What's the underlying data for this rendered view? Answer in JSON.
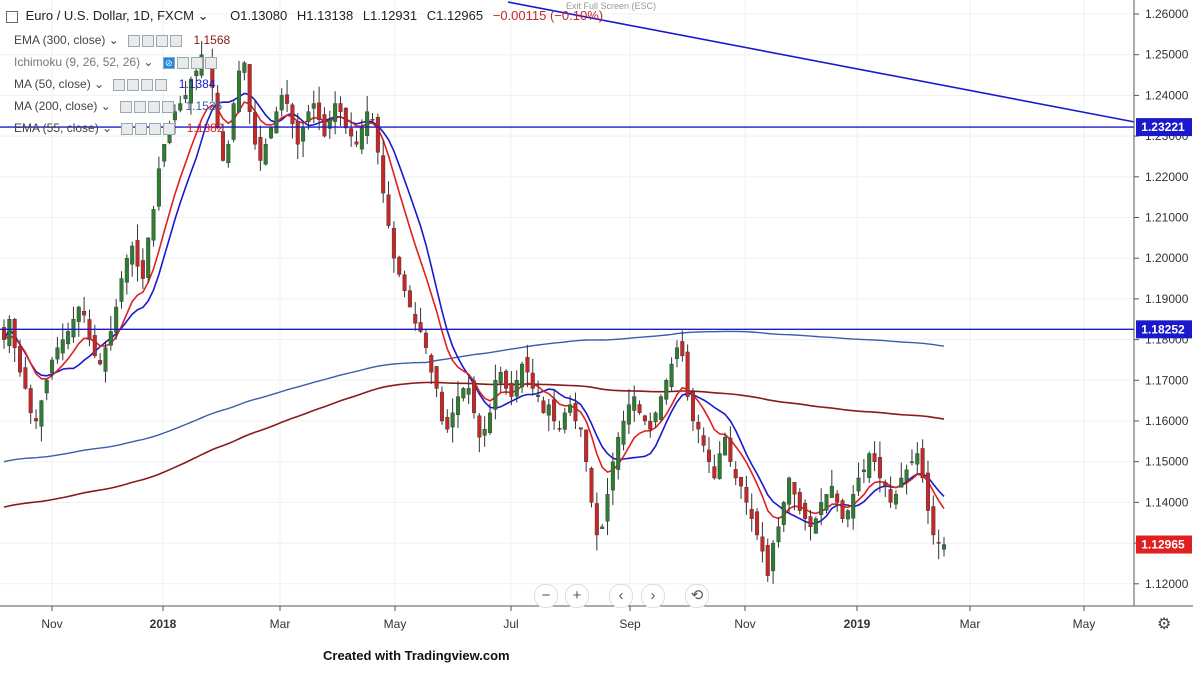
{
  "header": {
    "symbol": "Euro / U.S. Dollar, 1D, FXCM",
    "open": "O1.13080",
    "high": "H1.13138",
    "low": "L1.12931",
    "close": "C1.12965",
    "change": "−0.00115 (−0.10%)"
  },
  "exit_fullscreen": "Exit Full Screen (ESC)",
  "indicators": [
    {
      "label": "EMA (300, close)",
      "value": "1.1568",
      "color": "#8b1a1a"
    },
    {
      "label": "Ichimoku (9, 26, 52, 26)",
      "value": "",
      "color": "#1e88e5"
    },
    {
      "label": "MA (50, close)",
      "value": "1.1384",
      "color": "#1a1acc"
    },
    {
      "label": "MA (200, close)",
      "value": "1.1526",
      "color": "#3a5fa8"
    },
    {
      "label": "EMA (55, close)",
      "value": "1.1382",
      "color": "#e02020"
    }
  ],
  "nav": {
    "zoom_out": "−",
    "zoom_in": "+",
    "prev": "‹",
    "next": "›",
    "reset": "⟲"
  },
  "footer": "Created with Tradingview.com",
  "gear_icon": "⚙",
  "chart_data": {
    "type": "candlestick",
    "x_ticks": [
      "Nov",
      "2018",
      "Mar",
      "May",
      "Jul",
      "Sep",
      "Nov",
      "2019",
      "Mar",
      "May"
    ],
    "y_ticks": [
      "1.26000",
      "1.25000",
      "1.24000",
      "1.23000",
      "1.22000",
      "1.21000",
      "1.20000",
      "1.19000",
      "1.18000",
      "1.17000",
      "1.16000",
      "1.15000",
      "1.14000",
      "1.13000",
      "1.12000"
    ],
    "ylim": [
      1.1145,
      1.2635
    ],
    "horizontal_lines": [
      {
        "value": 1.23221,
        "label": "1.23221",
        "color": "#1a1acc"
      },
      {
        "value": 1.18252,
        "label": "1.18252",
        "color": "#1a1acc"
      }
    ],
    "last_price": {
      "value": 1.12965,
      "label": "1.12965",
      "color": "#e02020"
    },
    "trendline": {
      "from": [
        "2018-05",
        1.263
      ],
      "to": [
        "2019-06",
        1.233
      ],
      "color": "#1a1acc"
    },
    "colors": {
      "up": "#2e7d32",
      "down": "#c62828",
      "ema300": "#8b1a1a",
      "ma200": "#3a5fa8",
      "ma50": "#1a1acc",
      "ema55": "#e02020"
    },
    "close_series": [
      1.18,
      1.185,
      1.178,
      1.172,
      1.168,
      1.162,
      1.16,
      1.165,
      1.17,
      1.175,
      1.178,
      1.18,
      1.182,
      1.185,
      1.188,
      1.186,
      1.18,
      1.176,
      1.174,
      1.178,
      1.182,
      1.188,
      1.195,
      1.2,
      1.203,
      1.198,
      1.195,
      1.205,
      1.212,
      1.222,
      1.228,
      1.232,
      1.236,
      1.238,
      1.24,
      1.244,
      1.246,
      1.25,
      1.248,
      1.242,
      1.232,
      1.224,
      1.228,
      1.238,
      1.246,
      1.248,
      1.236,
      1.228,
      1.224,
      1.228,
      1.232,
      1.236,
      1.24,
      1.238,
      1.233,
      1.228,
      1.232,
      1.236,
      1.238,
      1.234,
      1.23,
      1.234,
      1.238,
      1.236,
      1.232,
      1.23,
      1.228,
      1.232,
      1.236,
      1.234,
      1.226,
      1.216,
      1.208,
      1.2,
      1.196,
      1.192,
      1.188,
      1.184,
      1.182,
      1.178,
      1.172,
      1.168,
      1.16,
      1.158,
      1.162,
      1.166,
      1.168,
      1.168,
      1.162,
      1.156,
      1.158,
      1.162,
      1.17,
      1.172,
      1.168,
      1.166,
      1.17,
      1.174,
      1.172,
      1.168,
      1.166,
      1.162,
      1.164,
      1.16,
      1.158,
      1.162,
      1.164,
      1.16,
      1.158,
      1.15,
      1.14,
      1.132,
      1.134,
      1.142,
      1.15,
      1.156,
      1.16,
      1.164,
      1.166,
      1.162,
      1.16,
      1.158,
      1.162,
      1.166,
      1.17,
      1.174,
      1.178,
      1.176,
      1.166,
      1.16,
      1.158,
      1.154,
      1.15,
      1.146,
      1.152,
      1.156,
      1.15,
      1.146,
      1.144,
      1.14,
      1.136,
      1.132,
      1.128,
      1.122,
      1.13,
      1.134,
      1.14,
      1.146,
      1.142,
      1.138,
      1.136,
      1.134,
      1.136,
      1.14,
      1.142,
      1.144,
      1.14,
      1.136,
      1.138,
      1.142,
      1.146,
      1.148,
      1.152,
      1.15,
      1.146,
      1.144,
      1.14,
      1.142,
      1.146,
      1.148,
      1.15,
      1.152,
      1.146,
      1.138,
      1.132,
      1.13,
      1.12965
    ]
  }
}
